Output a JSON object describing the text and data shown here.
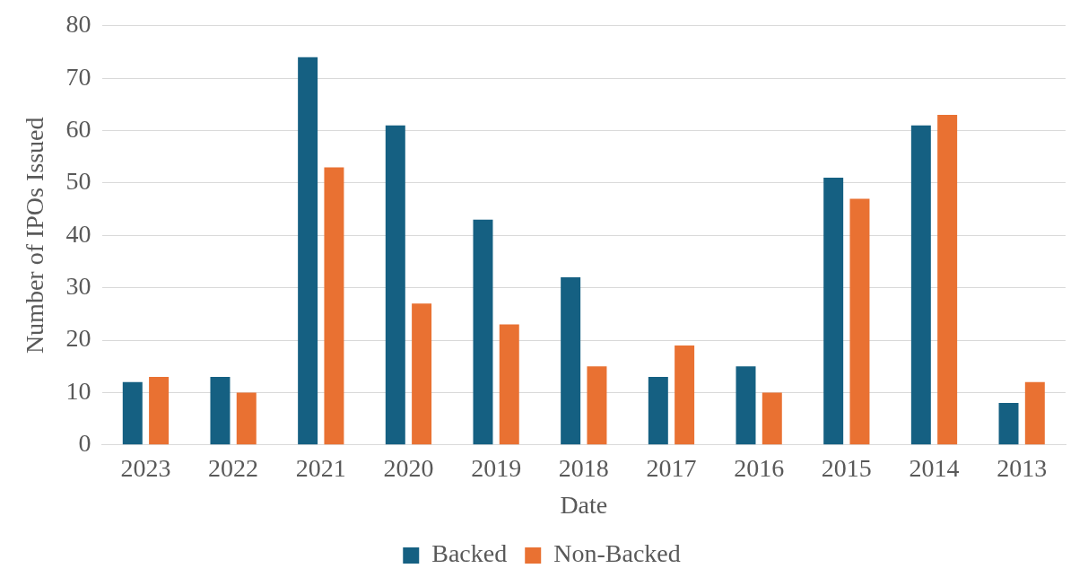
{
  "chart_data": {
    "type": "bar",
    "xlabel": "Date",
    "ylabel": "Number of IPOs Issued",
    "categories": [
      "2023",
      "2022",
      "2021",
      "2020",
      "2019",
      "2018",
      "2017",
      "2016",
      "2015",
      "2014",
      "2013"
    ],
    "series": [
      {
        "name": "Backed",
        "color": "#156082",
        "values": [
          12,
          13,
          74,
          61,
          43,
          32,
          13,
          15,
          51,
          61,
          8
        ]
      },
      {
        "name": "Non-Backed",
        "color": "#e97132",
        "values": [
          13,
          10,
          53,
          27,
          23,
          15,
          19,
          10,
          47,
          63,
          12
        ]
      }
    ],
    "ylim": [
      0,
      80
    ],
    "yticks": [
      0,
      10,
      20,
      30,
      40,
      50,
      60,
      70,
      80
    ],
    "grid": "y",
    "legend": "bottom"
  }
}
